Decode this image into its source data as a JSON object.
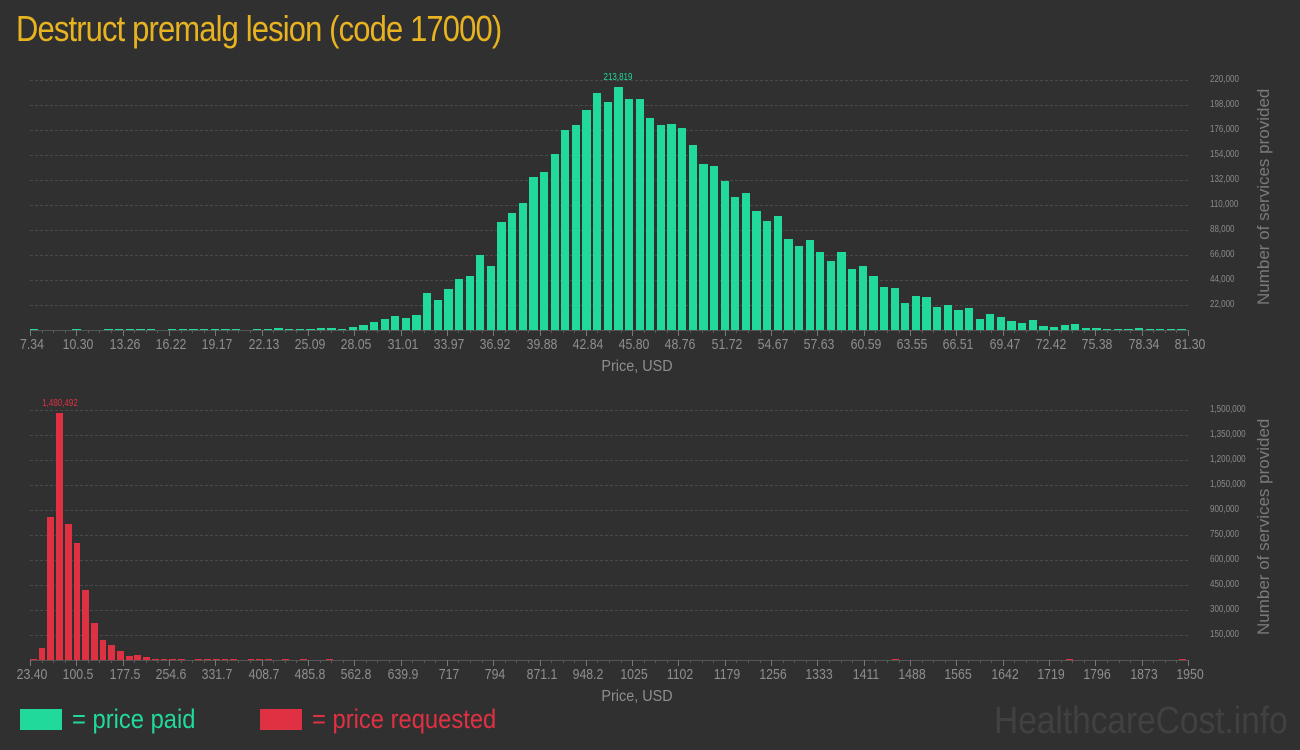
{
  "title": "Destruct premalg lesion (code 17000)",
  "colors": {
    "paid": "#21d99b",
    "requested": "#e03143",
    "title": "#e8b321"
  },
  "legend": {
    "paid_label": "= price paid",
    "requested_label": "= price requested"
  },
  "watermark": "HealthcareCost.info",
  "chart_data": [
    {
      "type": "bar",
      "title": "Price paid distribution",
      "xlabel": "Price, USD",
      "ylabel": "Number of services provided",
      "color": "#21d99b",
      "peak_label": "213,819",
      "ylim": [
        0,
        220000
      ],
      "yticks": [
        "220,000",
        "198,000",
        "176,000",
        "154,000",
        "132,000",
        "110,000",
        "88,000",
        "66,000",
        "44,000",
        "22,000"
      ],
      "ytick_values": [
        220000,
        198000,
        176000,
        154000,
        132000,
        110000,
        88000,
        66000,
        44000,
        22000
      ],
      "xticks": [
        "7.34",
        "10.30",
        "13.26",
        "16.22",
        "19.17",
        "22.13",
        "25.09",
        "28.05",
        "31.01",
        "33.97",
        "36.92",
        "39.88",
        "42.84",
        "45.80",
        "48.76",
        "51.72",
        "54.67",
        "57.63",
        "60.59",
        "63.55",
        "66.51",
        "69.47",
        "72.42",
        "75.38",
        "78.34",
        "81.30"
      ],
      "grid": true,
      "values": [
        900,
        0,
        0,
        0,
        900,
        0,
        0,
        900,
        900,
        900,
        900,
        900,
        0,
        900,
        900,
        900,
        900,
        900,
        900,
        900,
        0,
        900,
        900,
        1800,
        900,
        900,
        900,
        1800,
        1800,
        900,
        2700,
        4400,
        7000,
        9700,
        12300,
        10500,
        13200,
        32500,
        26300,
        36000,
        44800,
        47400,
        65800,
        56100,
        94700,
        103400,
        111400,
        134300,
        138700,
        154500,
        176400,
        180800,
        194000,
        209000,
        201000,
        213800,
        203500,
        203500,
        187000,
        180000,
        181700,
        178100,
        163100,
        146400,
        144600,
        131400,
        117400,
        120900,
        105100,
        96300,
        100600,
        80500,
        73500,
        78800,
        68300,
        60400,
        68300,
        54000,
        56100,
        47400,
        37700,
        36900,
        23700,
        29800,
        29000,
        20200,
        21900,
        17600,
        19300,
        9700,
        14100,
        11400,
        7900,
        6100,
        8800,
        3500,
        2600,
        4400,
        5300,
        1800,
        1800,
        900,
        900,
        900,
        1800,
        900,
        900,
        900,
        900
      ]
    },
    {
      "type": "bar",
      "title": "Price requested distribution",
      "xlabel": "Price, USD",
      "ylabel": "Number of services provided",
      "color": "#e03143",
      "peak_label": "1,480,492",
      "ylim": [
        0,
        1500000
      ],
      "yticks": [
        "1,500,000",
        "1,350,000",
        "1,200,000",
        "1,050,000",
        "900,000",
        "750,000",
        "600,000",
        "450,000",
        "300,000",
        "150,000"
      ],
      "ytick_values": [
        1500000,
        1350000,
        1200000,
        1050000,
        900000,
        750000,
        600000,
        450000,
        300000,
        150000
      ],
      "xticks": [
        "23.40",
        "100.5",
        "177.5",
        "254.6",
        "331.7",
        "408.7",
        "485.8",
        "562.8",
        "639.9",
        "717",
        "794",
        "871.1",
        "948.2",
        "1025",
        "1102",
        "1179",
        "1256",
        "1333",
        "1411",
        "1488",
        "1565",
        "1642",
        "1719",
        "1796",
        "1873",
        "1950"
      ],
      "grid": true,
      "values": [
        6000,
        72000,
        858000,
        1480492,
        816000,
        702000,
        420000,
        222000,
        120000,
        90000,
        54000,
        24000,
        30000,
        18000,
        6000,
        6000,
        6000,
        6000,
        0,
        6000,
        6000,
        6000,
        6000,
        6000,
        0,
        6000,
        6000,
        6000,
        0,
        6000,
        0,
        6000,
        0,
        0,
        6000,
        0,
        0,
        0,
        0,
        0,
        0,
        0,
        0,
        0,
        0,
        0,
        0,
        0,
        0,
        0,
        0,
        0,
        0,
        0,
        0,
        0,
        0,
        0,
        0,
        0,
        0,
        0,
        0,
        0,
        0,
        0,
        0,
        0,
        0,
        0,
        0,
        0,
        0,
        0,
        0,
        0,
        0,
        0,
        0,
        0,
        0,
        0,
        0,
        0,
        0,
        0,
        0,
        0,
        0,
        0,
        0,
        0,
        0,
        0,
        0,
        0,
        0,
        0,
        0,
        6000,
        0,
        0,
        0,
        0,
        0,
        0,
        0,
        0,
        0,
        0,
        0,
        0,
        0,
        0,
        0,
        0,
        0,
        0,
        0,
        6000,
        0,
        0,
        0,
        0,
        0,
        0,
        0,
        0,
        0,
        0,
        0,
        0,
        6000
      ]
    }
  ]
}
